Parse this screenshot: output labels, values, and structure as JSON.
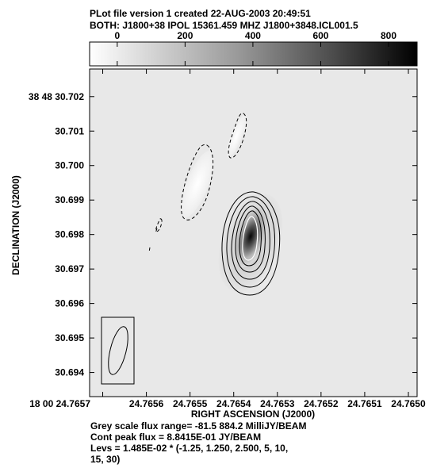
{
  "header": {
    "line1": "PLot file version 1  created 22-AUG-2003 20:49:51",
    "line2": "BOTH: J1800+38  IPOL  15361.459 MHZ  J1800+3848.ICL001.5"
  },
  "colorbar": {
    "ticks": [
      "0",
      "200",
      "400",
      "600",
      "800"
    ],
    "tick_values": [
      0,
      200,
      400,
      600,
      800
    ],
    "range": [
      -81.5,
      884.2
    ]
  },
  "footer": {
    "line1": "Grey scale flux range= -81.5 884.2 MilliJY/BEAM",
    "line2": "Cont peak flux =  8.8415E-01 JY/BEAM",
    "line3": "Levs = 1.485E-02 * (-1.25, 1.250, 2.500, 5, 10,",
    "line4": "15, 30)"
  },
  "chart_data": {
    "type": "heatmap",
    "xlabel": "RIGHT ASCENSION (J2000)",
    "ylabel": "DECLINATION (J2000)",
    "x_ticks": [
      "18 00 24.7657",
      "24.7656",
      "24.7655",
      "24.7654",
      "24.7653",
      "24.7652",
      "24.7651",
      "24.7650"
    ],
    "x_tick_values": [
      24.7657,
      24.7656,
      24.7655,
      24.7654,
      24.7653,
      24.7652,
      24.7651,
      24.765
    ],
    "xlim": [
      24.76573,
      24.76498
    ],
    "y_ticks": [
      "38 48 30.702",
      "30.701",
      "30.700",
      "30.699",
      "30.698",
      "30.697",
      "30.696",
      "30.695",
      "30.694"
    ],
    "y_tick_values": [
      30.702,
      30.701,
      30.7,
      30.699,
      30.698,
      30.697,
      30.696,
      30.695,
      30.694
    ],
    "ylim": [
      30.6933,
      30.7028
    ],
    "contour_levels_mJy": [
      -18.5625,
      18.5625,
      37.125,
      74.25,
      148.5,
      222.75,
      445.5
    ],
    "peak_position": {
      "ra": 24.76534,
      "dec": 30.69755
    },
    "negative_features": [
      {
        "ra": 24.76549,
        "dec": 30.69895
      },
      {
        "ra": 24.76538,
        "dec": 30.70035
      }
    ],
    "beam": {
      "ra": 24.76565,
      "dec": 30.69457
    }
  }
}
